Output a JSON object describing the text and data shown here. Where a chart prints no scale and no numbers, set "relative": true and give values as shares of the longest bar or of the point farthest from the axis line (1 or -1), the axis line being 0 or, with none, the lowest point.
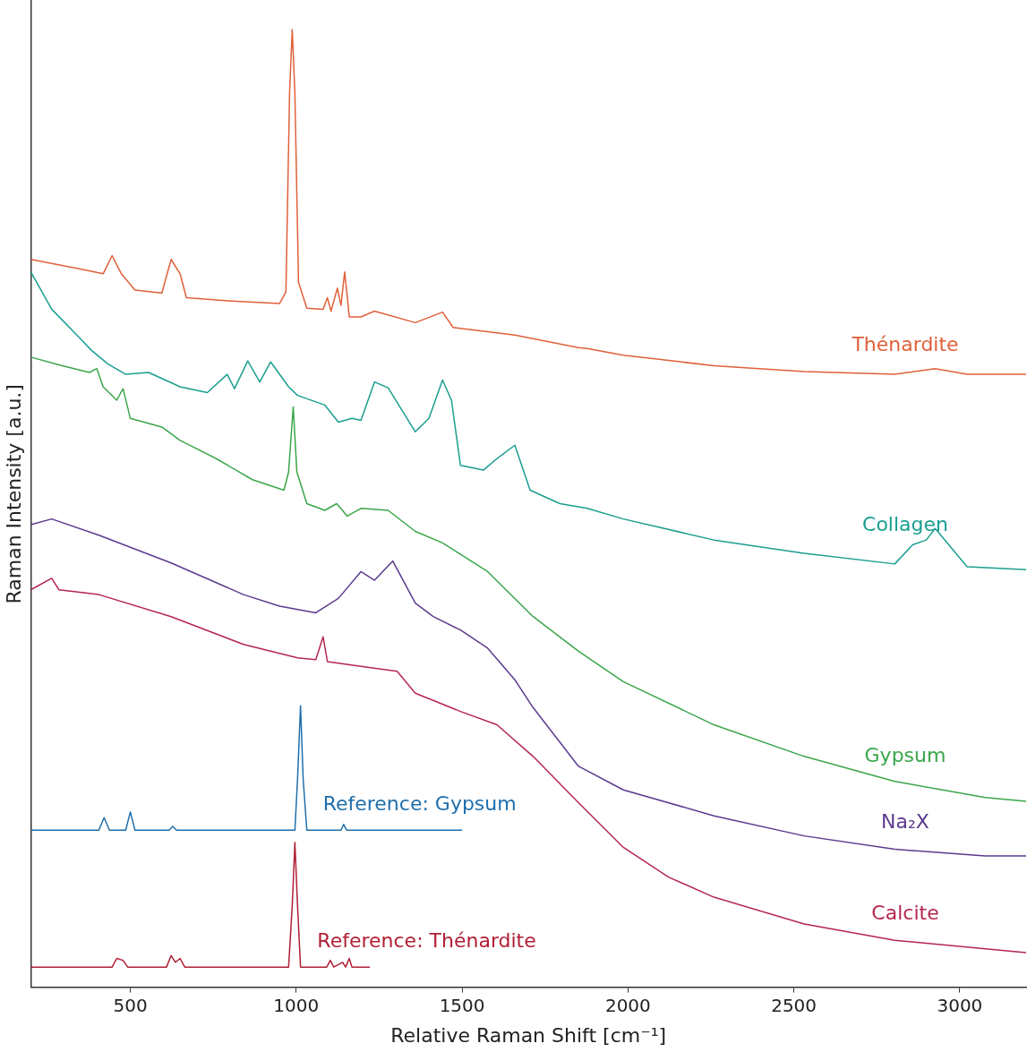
{
  "chart_data": {
    "type": "line",
    "relative": true,
    "xlabel": "Relative Raman Shift [cm⁻¹]",
    "ylabel": "Raman Intensity [a.u.]",
    "xlim": [
      200,
      3200
    ],
    "xticks": [
      500,
      1000,
      1500,
      2000,
      2500,
      3000
    ],
    "grid": false,
    "legend": false,
    "marker": "none",
    "line_style": "solid",
    "series": [
      {
        "name": "Thénardite",
        "color": "#e0603a",
        "x": [
          200,
          350,
          418,
          445,
          473,
          514,
          595,
          623,
          650,
          669,
          786,
          950,
          969,
          980,
          988,
          996,
          1007,
          1032,
          1081,
          1094,
          1105,
          1124,
          1135,
          1146,
          1160,
          1195,
          1236,
          1359,
          1441,
          1473,
          1659,
          1850,
          1877,
          1986,
          2259,
          2531,
          2804,
          2926,
          3022,
          3200
        ],
        "values": [
          0.76,
          0.75,
          0.745,
          0.764,
          0.745,
          0.728,
          0.725,
          0.76,
          0.745,
          0.72,
          0.717,
          0.714,
          0.726,
          0.934,
          1.0,
          0.934,
          0.736,
          0.709,
          0.708,
          0.72,
          0.706,
          0.73,
          0.712,
          0.747,
          0.7,
          0.7,
          0.706,
          0.694,
          0.705,
          0.689,
          0.681,
          0.668,
          0.667,
          0.66,
          0.649,
          0.643,
          0.64,
          0.646,
          0.64,
          0.64
        ]
      },
      {
        "name": "Collagen",
        "color": "#1a9e8f",
        "x": [
          200,
          263,
          350,
          383,
          432,
          486,
          555,
          650,
          732,
          792,
          814,
          854,
          890,
          923,
          977,
          1004,
          1086,
          1127,
          1168,
          1195,
          1236,
          1277,
          1359,
          1400,
          1441,
          1468,
          1495,
          1564,
          1605,
          1659,
          1705,
          1795,
          1877,
          1986,
          2259,
          2531,
          2804,
          2858,
          2899,
          2926,
          2967,
          3022,
          3200
        ],
        "values": [
          0.747,
          0.708,
          0.677,
          0.665,
          0.651,
          0.64,
          0.642,
          0.627,
          0.621,
          0.64,
          0.625,
          0.654,
          0.632,
          0.653,
          0.627,
          0.618,
          0.608,
          0.59,
          0.594,
          0.592,
          0.632,
          0.626,
          0.58,
          0.594,
          0.634,
          0.613,
          0.545,
          0.54,
          0.552,
          0.566,
          0.519,
          0.505,
          0.5,
          0.489,
          0.467,
          0.453,
          0.442,
          0.462,
          0.467,
          0.479,
          0.462,
          0.439,
          0.436
        ]
      },
      {
        "name": "Gypsum",
        "color": "#3aa64a",
        "x": [
          200,
          295,
          377,
          399,
          418,
          459,
          478,
          500,
          595,
          650,
          759,
          868,
          963,
          977,
          991,
          1002,
          1032,
          1086,
          1122,
          1154,
          1195,
          1277,
          1359,
          1441,
          1577,
          1714,
          1850,
          1986,
          2259,
          2531,
          2804,
          3077,
          3200
        ],
        "values": [
          0.658,
          0.649,
          0.642,
          0.646,
          0.627,
          0.613,
          0.625,
          0.594,
          0.585,
          0.571,
          0.552,
          0.53,
          0.519,
          0.538,
          0.606,
          0.538,
          0.505,
          0.498,
          0.505,
          0.492,
          0.5,
          0.498,
          0.476,
          0.464,
          0.434,
          0.387,
          0.351,
          0.319,
          0.274,
          0.241,
          0.215,
          0.198,
          0.194
        ]
      },
      {
        "name": "Na₂X",
        "color": "#5b3a8e",
        "x": [
          200,
          263,
          405,
          623,
          841,
          950,
          1059,
          1127,
          1195,
          1236,
          1291,
          1359,
          1413,
          1495,
          1577,
          1659,
          1714,
          1850,
          1986,
          2259,
          2531,
          2804,
          3077,
          3200
        ],
        "values": [
          0.483,
          0.489,
          0.472,
          0.443,
          0.41,
          0.398,
          0.391,
          0.406,
          0.434,
          0.425,
          0.445,
          0.401,
          0.387,
          0.373,
          0.354,
          0.321,
          0.292,
          0.231,
          0.206,
          0.179,
          0.158,
          0.144,
          0.137,
          0.137
        ]
      },
      {
        "name": "Calcite",
        "color": "#b5264f",
        "x": [
          200,
          263,
          285,
          405,
          623,
          841,
          1004,
          1059,
          1081,
          1094,
          1195,
          1304,
          1359,
          1495,
          1605,
          1714,
          1850,
          1986,
          2122,
          2259,
          2531,
          2804,
          3077,
          3200
        ],
        "values": [
          0.415,
          0.427,
          0.415,
          0.41,
          0.387,
          0.358,
          0.344,
          0.342,
          0.366,
          0.34,
          0.335,
          0.33,
          0.307,
          0.288,
          0.274,
          0.241,
          0.193,
          0.146,
          0.115,
          0.094,
          0.066,
          0.049,
          0.04,
          0.036
        ]
      },
      {
        "name": "Reference: Gypsum",
        "color": "#1f6fad",
        "x": [
          200,
          405,
          421,
          437,
          486,
          500,
          514,
          617,
          628,
          639,
          996,
          1004,
          1013,
          1021,
          1032,
          1135,
          1143,
          1152,
          1500
        ],
        "values": [
          0.164,
          0.164,
          0.177,
          0.164,
          0.164,
          0.183,
          0.164,
          0.164,
          0.168,
          0.164,
          0.164,
          0.217,
          0.294,
          0.217,
          0.164,
          0.164,
          0.17,
          0.164,
          0.164
        ]
      },
      {
        "name": "Reference: Thénardite",
        "color": "#b01f35",
        "x": [
          200,
          445,
          459,
          478,
          492,
          609,
          623,
          636,
          650,
          664,
          977,
          988,
          996,
          1004,
          1013,
          1092,
          1103,
          1113,
          1140,
          1149,
          1160,
          1168,
          1222
        ],
        "values": [
          0.021,
          0.021,
          0.03,
          0.028,
          0.021,
          0.021,
          0.033,
          0.026,
          0.03,
          0.021,
          0.021,
          0.085,
          0.151,
          0.085,
          0.021,
          0.021,
          0.028,
          0.021,
          0.026,
          0.021,
          0.03,
          0.021,
          0.021
        ]
      }
    ]
  }
}
